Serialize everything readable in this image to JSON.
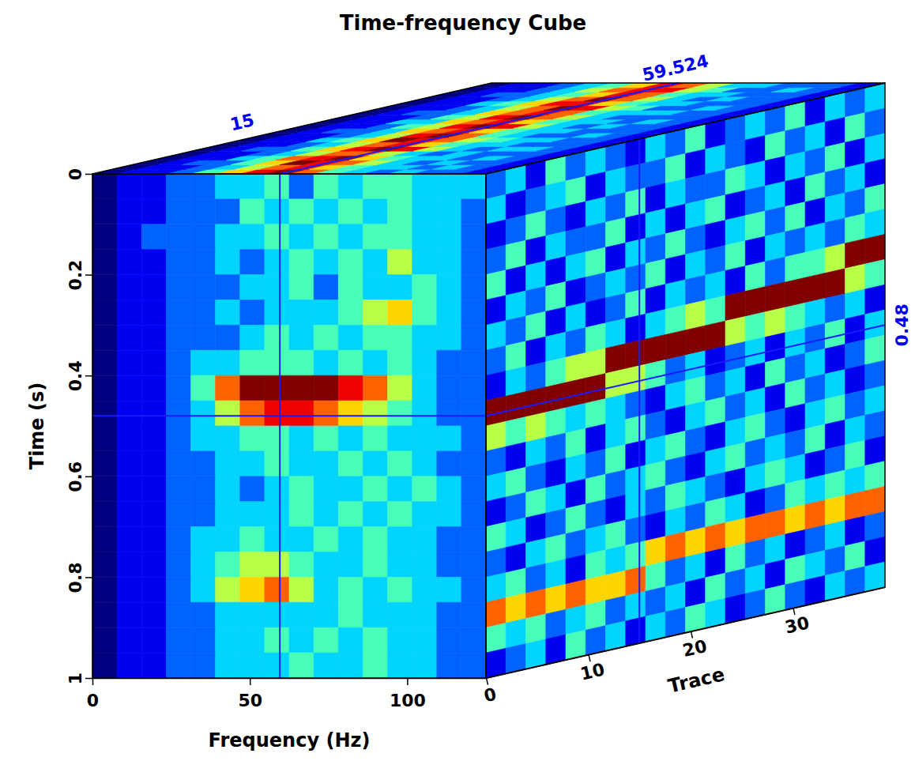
{
  "chart_data": {
    "type": "heatmap_cube",
    "title": "Time-frequency Cube",
    "xlabel": "Frequency (Hz)",
    "ylabel": "Time (s)",
    "zlabel": "Trace",
    "xlim": [
      0,
      125
    ],
    "xticks": [
      0,
      50,
      100
    ],
    "ylim": [
      0,
      1
    ],
    "yticks": [
      0,
      0.2,
      0.4,
      0.6,
      0.8,
      1
    ],
    "zlim": [
      0,
      39
    ],
    "zticks": [
      0,
      10,
      20,
      30
    ],
    "color_range": [
      0,
      9
    ],
    "slices": {
      "frequency": 59.524,
      "time": 0.48,
      "trace": 15
    },
    "front": {
      "cells": [
        [
          0,
          1,
          1,
          2,
          2,
          3,
          3,
          4,
          2,
          4,
          3,
          4,
          4,
          3,
          3,
          3
        ],
        [
          0,
          1,
          1,
          2,
          2,
          2,
          4,
          3,
          4,
          3,
          4,
          3,
          4,
          3,
          3,
          2
        ],
        [
          0,
          1,
          2,
          2,
          2,
          3,
          3,
          4,
          3,
          4,
          3,
          4,
          4,
          3,
          3,
          2
        ],
        [
          0,
          1,
          1,
          2,
          2,
          3,
          2,
          3,
          4,
          3,
          4,
          3,
          5,
          3,
          3,
          2
        ],
        [
          0,
          1,
          1,
          2,
          2,
          2,
          3,
          3,
          4,
          2,
          4,
          3,
          3,
          4,
          3,
          2
        ],
        [
          0,
          1,
          1,
          2,
          2,
          3,
          2,
          3,
          3,
          3,
          4,
          5,
          6,
          4,
          3,
          2
        ],
        [
          0,
          1,
          1,
          2,
          2,
          2,
          3,
          4,
          3,
          4,
          3,
          4,
          4,
          3,
          3,
          2
        ],
        [
          0,
          1,
          1,
          2,
          3,
          3,
          4,
          4,
          4,
          3,
          4,
          3,
          4,
          3,
          2,
          2
        ],
        [
          0,
          1,
          1,
          2,
          4,
          7,
          9,
          9,
          9,
          9,
          8,
          7,
          5,
          3,
          2,
          2
        ],
        [
          0,
          1,
          1,
          2,
          3,
          5,
          7,
          8,
          8,
          7,
          6,
          5,
          4,
          3,
          2,
          2
        ],
        [
          0,
          1,
          1,
          2,
          3,
          3,
          4,
          4,
          3,
          4,
          3,
          4,
          3,
          3,
          3,
          2
        ],
        [
          0,
          1,
          1,
          2,
          2,
          3,
          3,
          4,
          3,
          3,
          4,
          3,
          4,
          3,
          2,
          2
        ],
        [
          0,
          1,
          1,
          2,
          2,
          3,
          2,
          3,
          4,
          3,
          3,
          4,
          3,
          4,
          3,
          2
        ],
        [
          0,
          1,
          1,
          2,
          2,
          3,
          3,
          3,
          4,
          3,
          4,
          3,
          4,
          3,
          3,
          2
        ],
        [
          0,
          1,
          1,
          2,
          3,
          3,
          4,
          3,
          3,
          4,
          3,
          4,
          3,
          3,
          2,
          2
        ],
        [
          0,
          1,
          1,
          2,
          3,
          4,
          5,
          5,
          4,
          3,
          3,
          4,
          3,
          3,
          2,
          2
        ],
        [
          0,
          1,
          1,
          2,
          3,
          5,
          6,
          7,
          5,
          3,
          4,
          3,
          4,
          3,
          3,
          2
        ],
        [
          0,
          1,
          1,
          2,
          2,
          3,
          3,
          3,
          3,
          3,
          4,
          3,
          3,
          3,
          2,
          2
        ],
        [
          0,
          1,
          1,
          2,
          2,
          3,
          3,
          4,
          3,
          4,
          3,
          4,
          3,
          3,
          2,
          2
        ],
        [
          0,
          1,
          1,
          2,
          2,
          3,
          3,
          3,
          4,
          3,
          3,
          4,
          3,
          3,
          2,
          2
        ]
      ]
    },
    "side": {
      "cells": [
        [
          2,
          3,
          1,
          4,
          2,
          3,
          2,
          1,
          3,
          2,
          4,
          1,
          2,
          3,
          2,
          4,
          1,
          3,
          2,
          3
        ],
        [
          3,
          1,
          2,
          3,
          4,
          1,
          3,
          2,
          2,
          4,
          1,
          3,
          2,
          1,
          4,
          2,
          3,
          1,
          4,
          2
        ],
        [
          1,
          2,
          4,
          2,
          1,
          3,
          2,
          4,
          1,
          3,
          2,
          2,
          4,
          3,
          1,
          3,
          2,
          4,
          1,
          3
        ],
        [
          2,
          4,
          1,
          3,
          2,
          2,
          4,
          1,
          3,
          1,
          3,
          4,
          1,
          2,
          3,
          1,
          4,
          2,
          3,
          1
        ],
        [
          4,
          1,
          3,
          1,
          3,
          4,
          1,
          3,
          2,
          4,
          2,
          1,
          3,
          4,
          2,
          4,
          1,
          3,
          2,
          4
        ],
        [
          1,
          3,
          2,
          4,
          1,
          2,
          3,
          2,
          4,
          1,
          3,
          2,
          4,
          1,
          3,
          2,
          3,
          2,
          4,
          3
        ],
        [
          3,
          2,
          4,
          1,
          3,
          1,
          2,
          4,
          1,
          3,
          2,
          3,
          1,
          4,
          2,
          4,
          4,
          5,
          9,
          9
        ],
        [
          2,
          4,
          1,
          3,
          2,
          4,
          3,
          1,
          3,
          4,
          5,
          4,
          9,
          9,
          9,
          9,
          9,
          9,
          5,
          4
        ],
        [
          1,
          3,
          2,
          4,
          5,
          5,
          9,
          9,
          9,
          9,
          9,
          9,
          5,
          4,
          5,
          4,
          3,
          2,
          3,
          1
        ],
        [
          9,
          9,
          9,
          9,
          9,
          9,
          5,
          5,
          4,
          2,
          3,
          1,
          2,
          3,
          1,
          3,
          2,
          4,
          1,
          3
        ],
        [
          5,
          4,
          5,
          4,
          3,
          4,
          3,
          2,
          1,
          3,
          4,
          2,
          3,
          1,
          4,
          2,
          3,
          1,
          2,
          4
        ],
        [
          2,
          1,
          3,
          2,
          4,
          1,
          3,
          4,
          2,
          1,
          3,
          4,
          2,
          3,
          1,
          4,
          2,
          3,
          1,
          2
        ],
        [
          3,
          4,
          2,
          1,
          3,
          2,
          4,
          1,
          3,
          4,
          2,
          1,
          3,
          4,
          2,
          1,
          3,
          4,
          2,
          3
        ],
        [
          1,
          2,
          4,
          3,
          1,
          4,
          2,
          3,
          4,
          2,
          1,
          3,
          4,
          2,
          3,
          2,
          4,
          1,
          3,
          2
        ],
        [
          4,
          3,
          1,
          2,
          4,
          2,
          1,
          3,
          2,
          4,
          3,
          2,
          1,
          3,
          4,
          3,
          1,
          2,
          4,
          1
        ],
        [
          2,
          1,
          3,
          4,
          2,
          3,
          4,
          2,
          1,
          3,
          2,
          4,
          3,
          1,
          2,
          4,
          3,
          4,
          3,
          4
        ],
        [
          3,
          4,
          2,
          3,
          1,
          4,
          3,
          4,
          6,
          7,
          6,
          7,
          6,
          7,
          7,
          6,
          7,
          6,
          7,
          7
        ],
        [
          7,
          6,
          7,
          6,
          7,
          6,
          6,
          7,
          4,
          2,
          3,
          1,
          4,
          2,
          3,
          1,
          2,
          3,
          1,
          2
        ],
        [
          4,
          3,
          4,
          2,
          3,
          4,
          2,
          3,
          2,
          3,
          1,
          4,
          2,
          3,
          1,
          4,
          3,
          2,
          4,
          1
        ],
        [
          1,
          2,
          3,
          1,
          4,
          2,
          3,
          1,
          3,
          2,
          4,
          3,
          1,
          2,
          4,
          2,
          1,
          3,
          2,
          3
        ]
      ]
    },
    "top": {
      "cells": [
        [
          0,
          1,
          1,
          2,
          4,
          6,
          8,
          9,
          7,
          4,
          3,
          2,
          3,
          2,
          2,
          1
        ],
        [
          0,
          1,
          1,
          2,
          3,
          5,
          7,
          8,
          6,
          4,
          3,
          3,
          2,
          3,
          2,
          1
        ],
        [
          0,
          1,
          2,
          2,
          4,
          6,
          9,
          8,
          7,
          5,
          3,
          2,
          3,
          2,
          2,
          1
        ],
        [
          0,
          1,
          1,
          3,
          4,
          7,
          8,
          9,
          6,
          4,
          3,
          3,
          2,
          3,
          2,
          1
        ],
        [
          0,
          1,
          1,
          2,
          3,
          5,
          7,
          7,
          5,
          3,
          2,
          3,
          2,
          2,
          2,
          1
        ],
        [
          0,
          1,
          2,
          2,
          4,
          6,
          8,
          9,
          8,
          5,
          3,
          2,
          3,
          3,
          2,
          1
        ],
        [
          0,
          1,
          1,
          2,
          3,
          5,
          7,
          8,
          6,
          4,
          3,
          3,
          2,
          2,
          2,
          1
        ],
        [
          0,
          1,
          1,
          3,
          4,
          6,
          9,
          8,
          7,
          5,
          4,
          3,
          3,
          2,
          2,
          1
        ],
        [
          0,
          1,
          1,
          2,
          3,
          5,
          8,
          9,
          7,
          4,
          3,
          2,
          2,
          3,
          2,
          1
        ],
        [
          0,
          1,
          2,
          2,
          3,
          6,
          7,
          8,
          6,
          4,
          3,
          3,
          2,
          2,
          2,
          1
        ],
        [
          0,
          1,
          1,
          2,
          4,
          5,
          8,
          9,
          8,
          5,
          3,
          2,
          3,
          2,
          2,
          1
        ],
        [
          0,
          1,
          1,
          3,
          3,
          6,
          7,
          8,
          6,
          4,
          3,
          3,
          2,
          3,
          2,
          1
        ],
        [
          0,
          1,
          1,
          2,
          4,
          5,
          8,
          9,
          7,
          5,
          3,
          2,
          2,
          2,
          2,
          1
        ],
        [
          0,
          1,
          2,
          2,
          3,
          6,
          7,
          8,
          7,
          4,
          3,
          3,
          3,
          2,
          2,
          1
        ],
        [
          0,
          1,
          1,
          2,
          3,
          5,
          7,
          9,
          8,
          5,
          4,
          2,
          2,
          3,
          2,
          1
        ],
        [
          0,
          1,
          1,
          3,
          4,
          6,
          8,
          8,
          6,
          4,
          3,
          3,
          2,
          2,
          2,
          1
        ],
        [
          0,
          1,
          1,
          2,
          3,
          5,
          7,
          9,
          7,
          5,
          3,
          2,
          3,
          2,
          2,
          1
        ],
        [
          0,
          1,
          2,
          2,
          3,
          4,
          6,
          8,
          7,
          4,
          3,
          3,
          2,
          2,
          2,
          1
        ],
        [
          0,
          1,
          1,
          2,
          3,
          5,
          7,
          8,
          8,
          5,
          4,
          2,
          2,
          3,
          2,
          1
        ],
        [
          0,
          1,
          1,
          2,
          3,
          4,
          6,
          8,
          7,
          5,
          3,
          3,
          2,
          2,
          2,
          1
        ]
      ]
    }
  }
}
